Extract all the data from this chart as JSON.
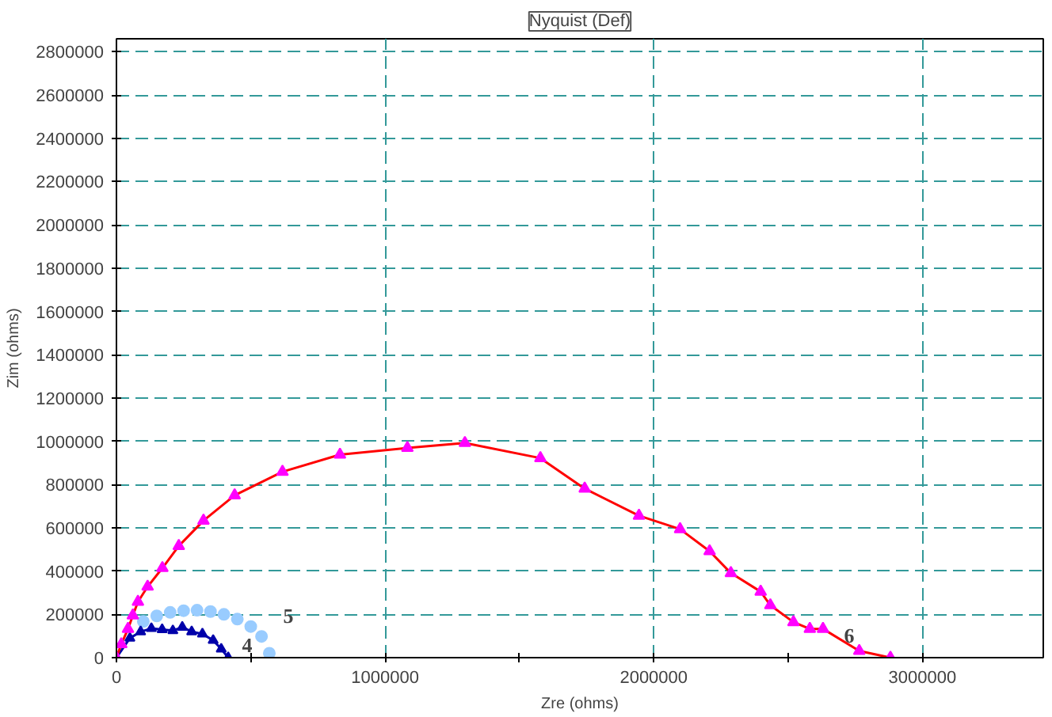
{
  "chart_data": {
    "type": "line",
    "title": "Nyquist (Def)",
    "xlabel": "Zre (ohms)",
    "ylabel": "Zim (ohms)",
    "xlim": [
      0,
      3450000
    ],
    "ylim": [
      0,
      2860000
    ],
    "xticks": [
      0,
      1000000,
      2000000,
      3000000
    ],
    "yticks": [
      0,
      200000,
      400000,
      600000,
      800000,
      1000000,
      1200000,
      1400000,
      1600000,
      1800000,
      2000000,
      2200000,
      2400000,
      2600000,
      2800000
    ],
    "grid": true,
    "series": [
      {
        "type": "scatter",
        "name": "5",
        "marker": "circle",
        "color": "#99ccff",
        "x": [
          100000,
          150000,
          200000,
          250000,
          300000,
          350000,
          400000,
          450000,
          500000,
          540000,
          569000
        ],
        "values": [
          167000,
          193000,
          209000,
          217000,
          219000,
          213000,
          200000,
          178000,
          144000,
          98000,
          20000
        ]
      },
      {
        "name": "4",
        "marker": "triangle",
        "color": "#0000aa",
        "x": [
          0,
          50000,
          90000,
          130000,
          170000,
          210000,
          245000,
          280000,
          320000,
          360000,
          390000,
          416000
        ],
        "values": [
          0,
          90000,
          120000,
          135000,
          130000,
          125000,
          141000,
          120000,
          110000,
          80000,
          40000,
          0
        ]
      },
      {
        "color": "#ff0000",
        "x": [
          0,
          18000,
          43000,
          61000,
          80000,
          116000,
          171000,
          232000,
          324000,
          440000,
          618000,
          832000,
          1083000,
          1297000,
          1578000,
          1743000,
          1945000,
          2098000,
          2208000,
          2287000,
          2398000,
          2434000,
          2520000,
          2581000,
          2630000,
          2765000,
          2881000
        ],
        "values": [
          0,
          62000,
          133000,
          195000,
          258000,
          328000,
          414000,
          516000,
          633000,
          750000,
          859000,
          938000,
          969000,
          992000,
          922000,
          781000,
          656000,
          594000,
          492000,
          391000,
          305000,
          242000,
          164000,
          133000,
          133000,
          31000,
          0
        ]
      },
      {
        "type": "scatter",
        "name": "6",
        "marker": "triangle",
        "color": "#ff00ff",
        "x": [
          0,
          18000,
          43000,
          61000,
          80000,
          116000,
          171000,
          232000,
          324000,
          440000,
          618000,
          832000,
          1083000,
          1297000,
          1578000,
          1743000,
          1945000,
          2098000,
          2208000,
          2287000,
          2398000,
          2434000,
          2520000,
          2581000,
          2630000,
          2765000,
          2881000
        ],
        "values": [
          0,
          62000,
          133000,
          195000,
          258000,
          328000,
          414000,
          516000,
          633000,
          750000,
          859000,
          938000,
          969000,
          992000,
          922000,
          781000,
          656000,
          594000,
          492000,
          391000,
          305000,
          242000,
          164000,
          133000,
          133000,
          31000,
          0
        ]
      }
    ]
  }
}
